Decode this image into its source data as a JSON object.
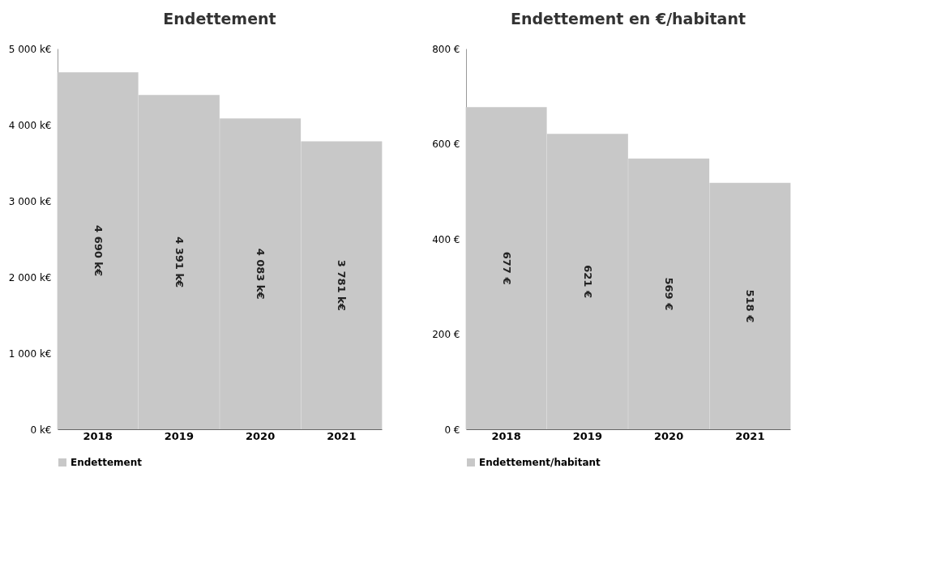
{
  "chart_data": [
    {
      "type": "bar",
      "title": "Endettement",
      "categories": [
        "2018",
        "2019",
        "2020",
        "2021"
      ],
      "series": [
        {
          "name": "Endettement",
          "color": "#c8c8c8",
          "values": [
            4690,
            4391,
            4083,
            3781
          ],
          "value_labels": [
            "4 690 k€",
            "4 391 k€",
            "4 083 k€",
            "3 781 k€"
          ]
        }
      ],
      "ylim": [
        0,
        5000
      ],
      "yticks": [
        {
          "value": 0,
          "label": "0 k€"
        },
        {
          "value": 1000,
          "label": "1 000 k€"
        },
        {
          "value": 2000,
          "label": "2 000 k€"
        },
        {
          "value": 3000,
          "label": "3 000 k€"
        },
        {
          "value": 4000,
          "label": "4 000 k€"
        },
        {
          "value": 5000,
          "label": "5 000 k€"
        }
      ],
      "legend": "bottom left"
    },
    {
      "type": "bar",
      "title": "Endettement en €/habitant",
      "categories": [
        "2018",
        "2019",
        "2020",
        "2021"
      ],
      "series": [
        {
          "name": "Endettement/habitant",
          "color": "#c8c8c8",
          "values": [
            677,
            621,
            569,
            518
          ],
          "value_labels": [
            "677 €",
            "621 €",
            "569 €",
            "518 €"
          ]
        }
      ],
      "ylim": [
        0,
        800
      ],
      "yticks": [
        {
          "value": 0,
          "label": "0 €"
        },
        {
          "value": 200,
          "label": "200 €"
        },
        {
          "value": 400,
          "label": "400 €"
        },
        {
          "value": 600,
          "label": "600 €"
        },
        {
          "value": 800,
          "label": "800 €"
        }
      ],
      "legend": "bottom left"
    }
  ]
}
